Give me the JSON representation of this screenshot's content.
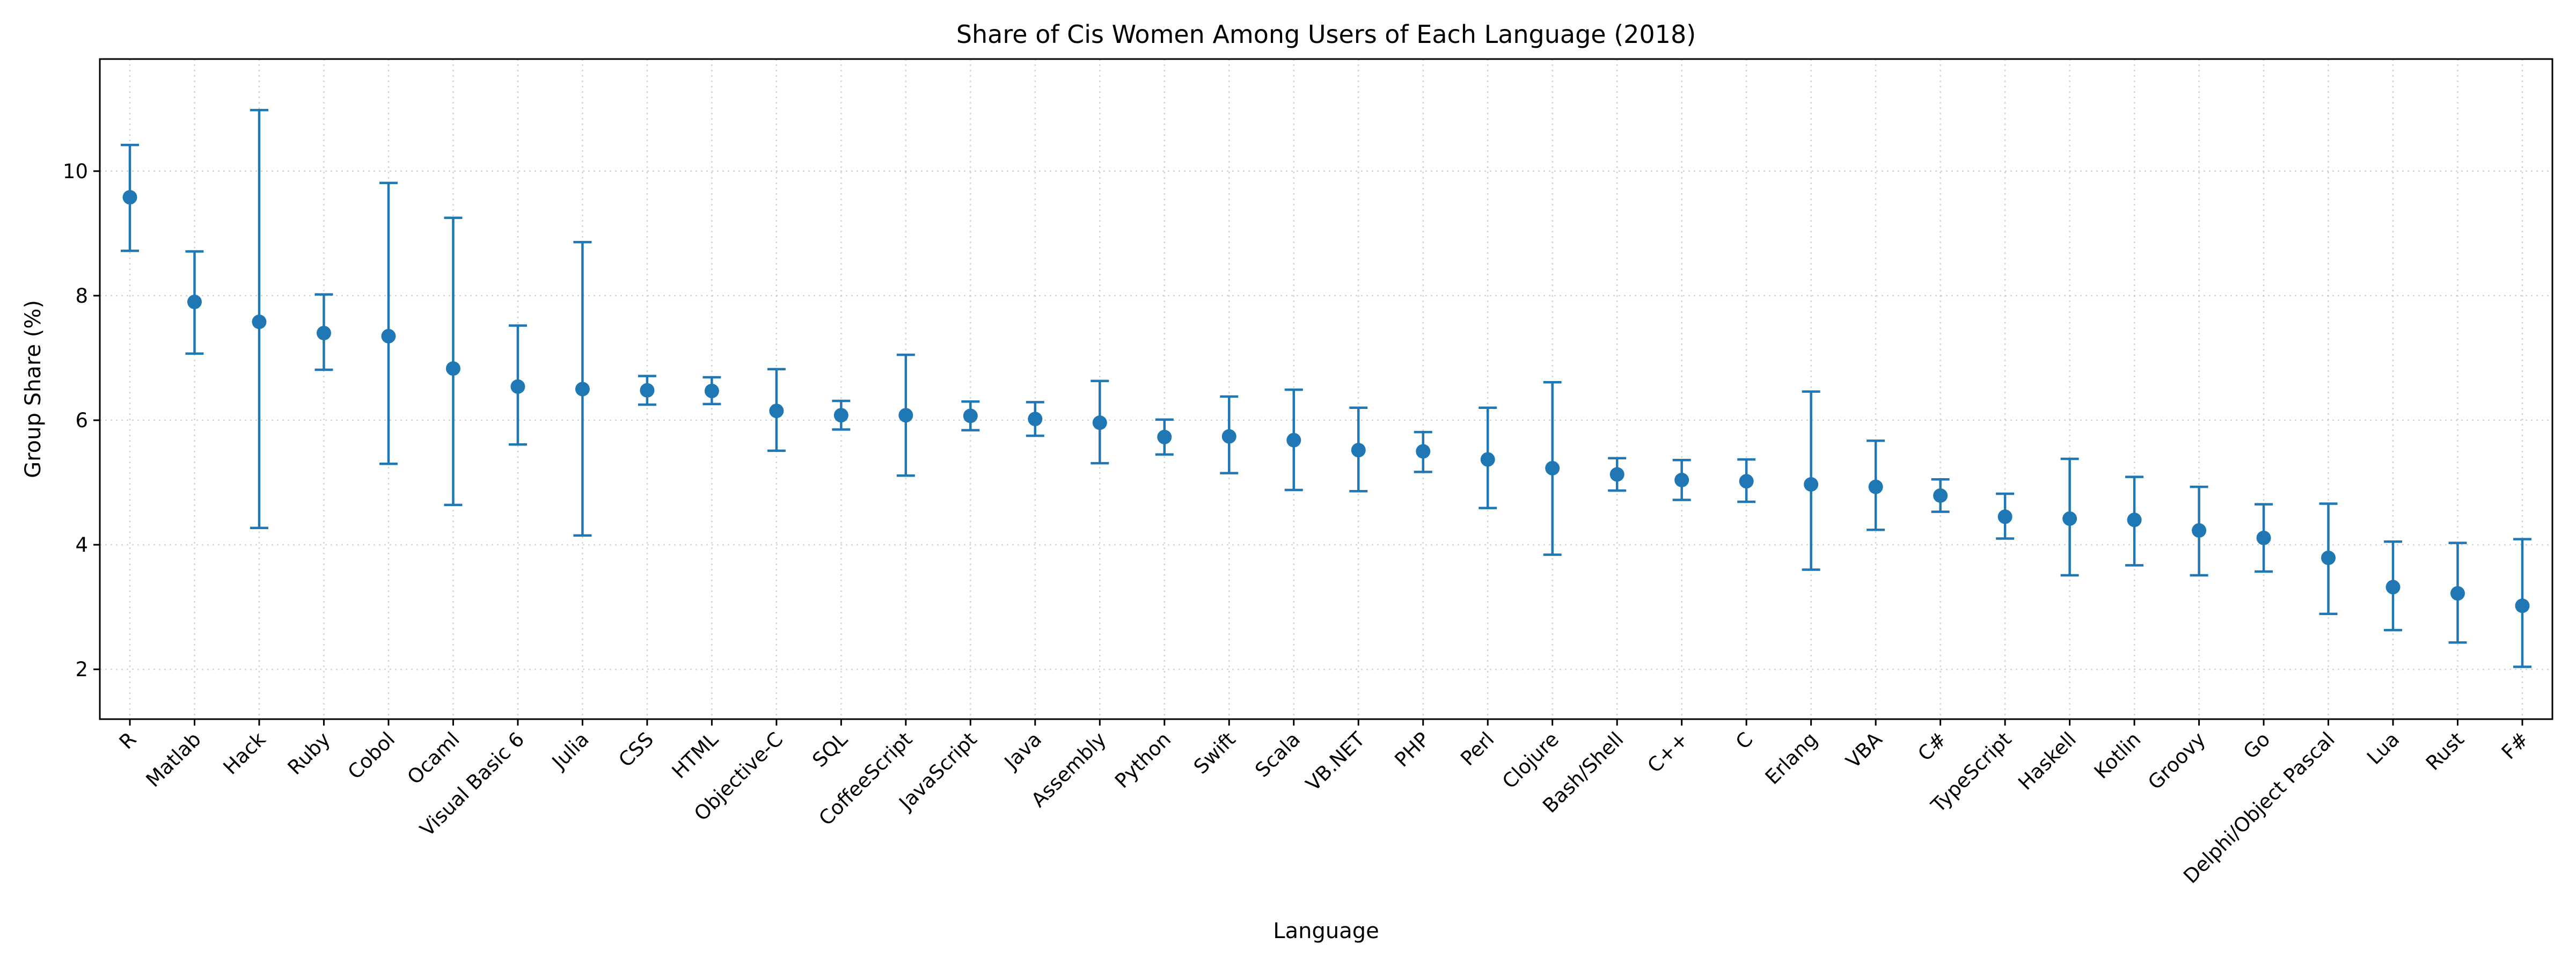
{
  "chart_data": {
    "type": "scatter",
    "title": "Share of Cis Women Among Users of Each Language (2018)",
    "xlabel": "Language",
    "ylabel": "Group Share (%)",
    "ylim": [
      1.2,
      11.8
    ],
    "yticks": [
      2,
      4,
      6,
      8,
      10
    ],
    "grid": true,
    "legend": "none",
    "series_color": "#1f77b4",
    "categories": [
      "R",
      "Matlab",
      "Hack",
      "Ruby",
      "Cobol",
      "Ocaml",
      "Visual Basic 6",
      "Julia",
      "CSS",
      "HTML",
      "Objective-C",
      "SQL",
      "CoffeeScript",
      "JavaScript",
      "Java",
      "Assembly",
      "Python",
      "Swift",
      "Scala",
      "VB.NET",
      "PHP",
      "Perl",
      "Clojure",
      "Bash/Shell",
      "C++",
      "C",
      "Erlang",
      "VBA",
      "C#",
      "TypeScript",
      "Haskell",
      "Kotlin",
      "Groovy",
      "Go",
      "Delphi/Object Pascal",
      "Lua",
      "Rust",
      "F#"
    ],
    "values": [
      9.58,
      7.9,
      7.58,
      7.4,
      7.35,
      6.83,
      6.54,
      6.5,
      6.48,
      6.47,
      6.15,
      6.08,
      6.08,
      6.07,
      6.02,
      5.96,
      5.73,
      5.74,
      5.68,
      5.52,
      5.5,
      5.37,
      5.23,
      5.13,
      5.04,
      5.02,
      4.97,
      4.93,
      4.79,
      4.45,
      4.42,
      4.4,
      4.23,
      4.11,
      3.79,
      3.32,
      3.22,
      3.02
    ],
    "lower": [
      8.72,
      7.07,
      4.27,
      6.81,
      5.3,
      4.64,
      5.61,
      4.15,
      6.25,
      6.26,
      5.51,
      5.85,
      5.11,
      5.84,
      5.75,
      5.31,
      5.45,
      5.15,
      4.88,
      4.86,
      5.17,
      4.59,
      3.84,
      4.87,
      4.72,
      4.69,
      3.6,
      4.24,
      4.53,
      4.1,
      3.51,
      3.67,
      3.51,
      3.57,
      2.89,
      2.63,
      2.43,
      2.04
    ],
    "upper": [
      10.42,
      8.71,
      10.98,
      8.02,
      9.81,
      9.25,
      7.52,
      8.86,
      6.71,
      6.69,
      6.82,
      6.31,
      7.05,
      6.3,
      6.29,
      6.63,
      6.01,
      6.38,
      6.49,
      6.2,
      5.81,
      6.2,
      6.61,
      5.39,
      5.36,
      5.37,
      6.46,
      5.67,
      5.05,
      4.82,
      5.38,
      5.09,
      4.93,
      4.65,
      4.66,
      4.05,
      4.03,
      4.09
    ]
  }
}
